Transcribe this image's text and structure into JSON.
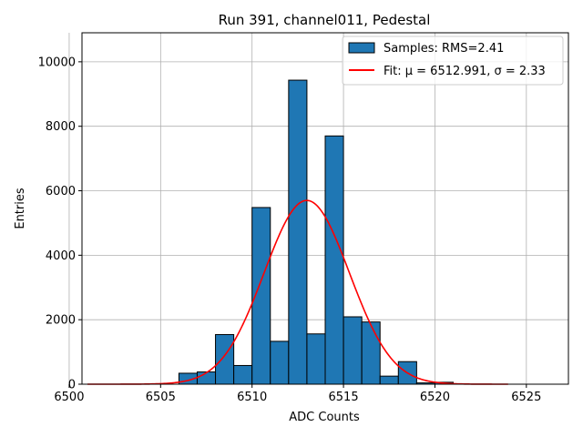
{
  "chart_data": {
    "type": "bar",
    "title": "Run 391, channel011, Pedestal",
    "xlabel": "ADC Counts",
    "ylabel": "Entries",
    "xlim": [
      6500.7,
      6527.3
    ],
    "ylim": [
      0,
      10900
    ],
    "grid": true,
    "x_ticks": [
      6500,
      6505,
      6510,
      6515,
      6520,
      6525
    ],
    "y_ticks": [
      0,
      2000,
      4000,
      6000,
      8000,
      10000
    ],
    "histogram": {
      "name": "Samples: RMS=2.41",
      "color": "#1f77b4",
      "bins": [
        {
          "x0": 6506.0,
          "x1": 6507.0,
          "count": 340
        },
        {
          "x0": 6507.0,
          "x1": 6508.0,
          "count": 380
        },
        {
          "x0": 6508.0,
          "x1": 6509.0,
          "count": 1540
        },
        {
          "x0": 6509.0,
          "x1": 6510.0,
          "count": 580
        },
        {
          "x0": 6510.0,
          "x1": 6511.0,
          "count": 5480
        },
        {
          "x0": 6511.0,
          "x1": 6512.0,
          "count": 1330
        },
        {
          "x0": 6512.0,
          "x1": 6513.0,
          "count": 9430
        },
        {
          "x0": 6513.0,
          "x1": 6514.0,
          "count": 1560
        },
        {
          "x0": 6514.0,
          "x1": 6515.0,
          "count": 7700
        },
        {
          "x0": 6515.0,
          "x1": 6516.0,
          "count": 2090
        },
        {
          "x0": 6516.0,
          "x1": 6517.0,
          "count": 1930
        },
        {
          "x0": 6517.0,
          "x1": 6518.0,
          "count": 250
        },
        {
          "x0": 6518.0,
          "x1": 6519.0,
          "count": 700
        },
        {
          "x0": 6519.0,
          "x1": 6520.0,
          "count": 40
        },
        {
          "x0": 6520.0,
          "x1": 6521.0,
          "count": 60
        }
      ]
    },
    "fit": {
      "name": "Fit: μ = 6512.991, σ = 2.33",
      "color": "#ff0000",
      "mu": 6512.991,
      "sigma": 2.33,
      "amplitude": 5700,
      "x_range": [
        6501.0,
        6524.0
      ]
    },
    "legend_position": "top-right"
  }
}
